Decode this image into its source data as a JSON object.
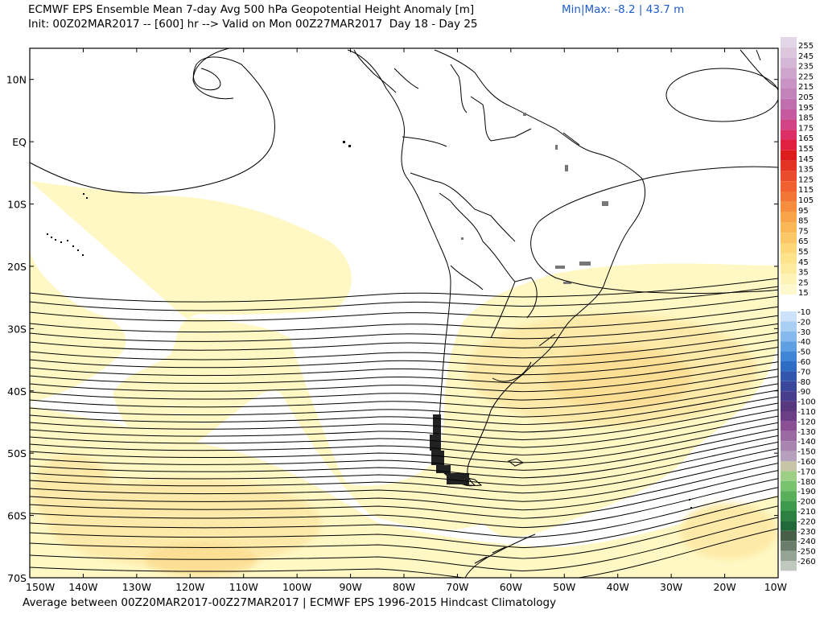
{
  "header": {
    "title": "ECMWF EPS Ensemble Mean 7-day Avg 500 hPa Geopotential Height Anomaly [m]",
    "minmax": "Min|Max: -8.2 | 43.7 m",
    "init": "Init: 00Z02MAR2017 -- [600] hr --> Valid on Mon 00Z27MAR2017  Day 18 - Day 25"
  },
  "footer": "Average between 00Z20MAR2017-00Z27MAR2017 | ECMWF EPS 1996-2015 Hindcast Climatology",
  "map": {
    "lat_labels": [
      "10N",
      "EQ",
      "10S",
      "20S",
      "30S",
      "40S",
      "50S",
      "60S",
      "70S"
    ],
    "lon_labels": [
      "150W",
      "140W",
      "130W",
      "120W",
      "110W",
      "100W",
      "90W",
      "80W",
      "70W",
      "60W",
      "50W",
      "40W",
      "30W",
      "20W",
      "10W"
    ]
  },
  "colorbar": {
    "positive_labels": [
      "255",
      "245",
      "235",
      "225",
      "215",
      "205",
      "195",
      "185",
      "175",
      "165",
      "155",
      "145",
      "135",
      "125",
      "115",
      "105",
      "95",
      "85",
      "75",
      "65",
      "55",
      "45",
      "35",
      "25",
      "15"
    ],
    "positive_colors": [
      "#e3d6e6",
      "#dcc7de",
      "#d4b6d6",
      "#cfa4cd",
      "#c993c4",
      "#c283bb",
      "#bf6fae",
      "#c65aa0",
      "#d14385",
      "#db2f66",
      "#e0203f",
      "#dd1c1c",
      "#e33323",
      "#ea4b2a",
      "#f06030",
      "#f47636",
      "#f78e3e",
      "#f9a448",
      "#fbb655",
      "#fcc765",
      "#fdd676",
      "#fde38a",
      "#fdeca0",
      "#fef3b6",
      "#fff8cc"
    ],
    "negative_labels": [
      "-10",
      "-20",
      "-30",
      "-40",
      "-50",
      "-60",
      "-70",
      "-80",
      "-90",
      "-100",
      "-110",
      "-120",
      "-130",
      "-140",
      "-150",
      "-160",
      "-170",
      "-180",
      "-190",
      "-200",
      "-210",
      "-220",
      "-230",
      "-240",
      "-250",
      "-260"
    ],
    "negative_colors": [
      "#cde3fa",
      "#a9cff5",
      "#86b9ee",
      "#5f9fe4",
      "#3f86d6",
      "#2f6cc3",
      "#3356ad",
      "#3a479b",
      "#473d8c",
      "#57387f",
      "#6b3e85",
      "#8a4f94",
      "#9a6aa3",
      "#a884b0",
      "#b6a0bd",
      "#c8c4a8",
      "#9ecf87",
      "#77c46c",
      "#5aaf5a",
      "#3e9a4c",
      "#2c8142",
      "#21683a",
      "#465f46",
      "#6b7d6b",
      "#95a595",
      "#c0c8c0"
    ]
  }
}
